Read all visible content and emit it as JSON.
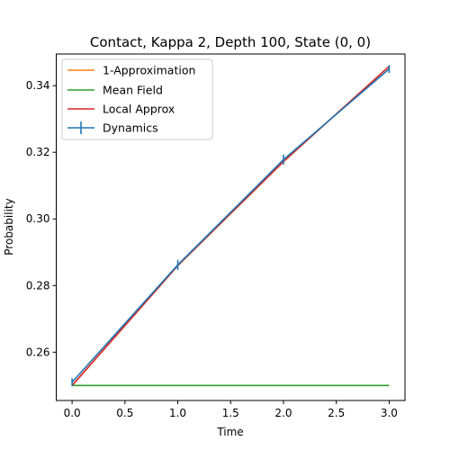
{
  "chart_data": {
    "type": "line",
    "title": "Contact, Kappa 2, Depth 100,  State (0, 0)",
    "xlabel": "Time",
    "ylabel": "Probability",
    "xlim": [
      -0.15,
      3.15
    ],
    "ylim": [
      0.2455,
      0.3495
    ],
    "x_ticks": [
      0.0,
      0.5,
      1.0,
      1.5,
      2.0,
      2.5,
      3.0
    ],
    "x_tick_labels": [
      "0.0",
      "0.5",
      "1.0",
      "1.5",
      "2.0",
      "2.5",
      "3.0"
    ],
    "y_ticks": [
      0.26,
      0.28,
      0.3,
      0.32,
      0.34
    ],
    "y_tick_labels": [
      "0.26",
      "0.28",
      "0.30",
      "0.32",
      "0.34"
    ],
    "grid": false,
    "legend_position": "top-left",
    "series": [
      {
        "name": "1-Approximation",
        "color": "#ff7f0e",
        "x": [
          0,
          1,
          2,
          3
        ],
        "y": [
          0.25,
          0.286,
          0.3172,
          0.3458
        ]
      },
      {
        "name": "Mean Field",
        "color": "#2ca02c",
        "x": [
          0,
          1,
          2,
          3
        ],
        "y": [
          0.25,
          0.25,
          0.25,
          0.25
        ]
      },
      {
        "name": "Local Approx",
        "color": "#d62728",
        "x": [
          0,
          1,
          2,
          3
        ],
        "y": [
          0.25,
          0.286,
          0.3172,
          0.3458
        ]
      },
      {
        "name": "Dynamics",
        "color": "#1f77b4",
        "x": [
          0,
          1,
          2,
          3
        ],
        "y": [
          0.251,
          0.2862,
          0.3178,
          0.345
        ],
        "yerr": [
          0.0012,
          0.0015,
          0.0015,
          0.0012
        ],
        "errorbars": true
      }
    ]
  }
}
